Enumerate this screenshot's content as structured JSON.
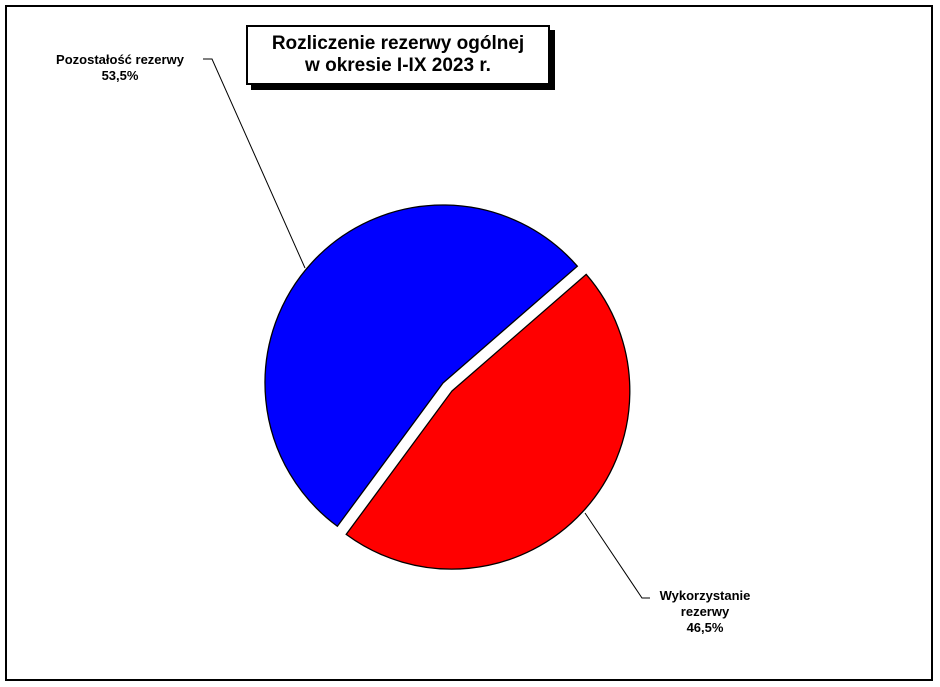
{
  "chart_data": {
    "type": "pie",
    "title": "Rozliczenie rezerwy ogólnej",
    "subtitle": "w okresie I-IX 2023 r.",
    "slices": [
      {
        "label": "Pozostałość rezerwy",
        "label_lines": [
          "Pozostałość rezerwy"
        ],
        "value": 53.5,
        "display_value": "53,5%",
        "color": "#0000FF",
        "exploded": false
      },
      {
        "label": "Wykorzystanie rezerwy",
        "label_lines": [
          "Wykorzystanie",
          "rezerwy"
        ],
        "value": 46.5,
        "display_value": "46,5%",
        "color": "#FF0000",
        "exploded": true
      }
    ],
    "legend": "none"
  }
}
